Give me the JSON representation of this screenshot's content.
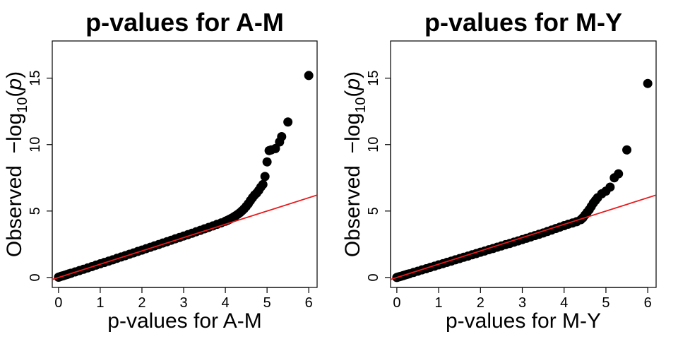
{
  "chart_data": [
    {
      "type": "scatter",
      "title": "p-values for A-M",
      "xlabel": "p-values for A-M",
      "ylabel": {
        "prefix": "Observed  −log",
        "sub": "10",
        "open": "(",
        "var": "p",
        "close": ")"
      },
      "xlim": [
        -0.15,
        6.2
      ],
      "ylim": [
        -0.75,
        17.8
      ],
      "xticks": [
        0,
        1,
        2,
        3,
        4,
        5,
        6
      ],
      "yticks": [
        0,
        5,
        10,
        15
      ],
      "reference_line": {
        "intercept": 0,
        "slope": 1,
        "color": "#e8191b"
      },
      "point_color": "#000000",
      "grid": false,
      "legend": null,
      "points": [
        [
          0.0,
          0.02
        ],
        [
          0.03,
          0.05
        ],
        [
          0.06,
          0.09
        ],
        [
          0.1,
          0.12
        ],
        [
          0.15,
          0.17
        ],
        [
          0.2,
          0.22
        ],
        [
          0.25,
          0.27
        ],
        [
          0.3,
          0.32
        ],
        [
          0.4,
          0.42
        ],
        [
          0.5,
          0.52
        ],
        [
          0.6,
          0.62
        ],
        [
          0.7,
          0.72
        ],
        [
          0.8,
          0.82
        ],
        [
          0.9,
          0.93
        ],
        [
          1.0,
          1.03
        ],
        [
          1.1,
          1.13
        ],
        [
          1.2,
          1.23
        ],
        [
          1.3,
          1.33
        ],
        [
          1.4,
          1.44
        ],
        [
          1.5,
          1.54
        ],
        [
          1.6,
          1.64
        ],
        [
          1.7,
          1.75
        ],
        [
          1.8,
          1.85
        ],
        [
          1.9,
          1.96
        ],
        [
          2.0,
          2.06
        ],
        [
          2.1,
          2.17
        ],
        [
          2.2,
          2.27
        ],
        [
          2.3,
          2.38
        ],
        [
          2.4,
          2.48
        ],
        [
          2.5,
          2.59
        ],
        [
          2.6,
          2.69
        ],
        [
          2.7,
          2.8
        ],
        [
          2.8,
          2.91
        ],
        [
          2.9,
          3.01
        ],
        [
          3.0,
          3.12
        ],
        [
          3.1,
          3.22
        ],
        [
          3.2,
          3.33
        ],
        [
          3.3,
          3.44
        ],
        [
          3.4,
          3.55
        ],
        [
          3.5,
          3.66
        ],
        [
          3.6,
          3.77
        ],
        [
          3.7,
          3.88
        ],
        [
          3.8,
          4.0
        ],
        [
          3.9,
          4.11
        ],
        [
          4.0,
          4.23
        ],
        [
          4.05,
          4.3
        ],
        [
          4.1,
          4.38
        ],
        [
          4.15,
          4.46
        ],
        [
          4.2,
          4.55
        ],
        [
          4.25,
          4.65
        ],
        [
          4.3,
          4.76
        ],
        [
          4.35,
          4.88
        ],
        [
          4.4,
          5.02
        ],
        [
          4.45,
          5.17
        ],
        [
          4.5,
          5.35
        ],
        [
          4.55,
          5.55
        ],
        [
          4.6,
          5.78
        ],
        [
          4.65,
          6.0
        ],
        [
          4.7,
          6.2
        ],
        [
          4.75,
          6.35
        ],
        [
          4.8,
          6.55
        ],
        [
          4.85,
          6.8
        ],
        [
          4.9,
          7.0
        ],
        [
          4.95,
          7.6
        ],
        [
          5.0,
          8.7
        ],
        [
          5.05,
          9.55
        ],
        [
          5.1,
          9.6
        ],
        [
          5.2,
          9.7
        ],
        [
          5.3,
          10.2
        ],
        [
          5.35,
          10.6
        ],
        [
          5.5,
          11.7
        ],
        [
          6.0,
          15.2
        ]
      ]
    },
    {
      "type": "scatter",
      "title": "p-values for M-Y",
      "xlabel": "p-values for M-Y",
      "ylabel": {
        "prefix": "Observed  −log",
        "sub": "10",
        "open": "(",
        "var": "p",
        "close": ")"
      },
      "xlim": [
        -0.15,
        6.2
      ],
      "ylim": [
        -0.75,
        17.8
      ],
      "xticks": [
        0,
        1,
        2,
        3,
        4,
        5,
        6
      ],
      "yticks": [
        0,
        5,
        10,
        15
      ],
      "reference_line": {
        "intercept": 0,
        "slope": 1,
        "color": "#e8191b"
      },
      "point_color": "#000000",
      "grid": false,
      "legend": null,
      "points": [
        [
          0.0,
          0.0
        ],
        [
          0.03,
          0.03
        ],
        [
          0.06,
          0.06
        ],
        [
          0.1,
          0.09
        ],
        [
          0.15,
          0.14
        ],
        [
          0.2,
          0.19
        ],
        [
          0.25,
          0.24
        ],
        [
          0.3,
          0.28
        ],
        [
          0.4,
          0.38
        ],
        [
          0.5,
          0.47
        ],
        [
          0.6,
          0.57
        ],
        [
          0.7,
          0.66
        ],
        [
          0.8,
          0.76
        ],
        [
          0.9,
          0.85
        ],
        [
          1.0,
          0.95
        ],
        [
          1.1,
          1.04
        ],
        [
          1.2,
          1.14
        ],
        [
          1.3,
          1.23
        ],
        [
          1.4,
          1.33
        ],
        [
          1.5,
          1.42
        ],
        [
          1.6,
          1.52
        ],
        [
          1.7,
          1.61
        ],
        [
          1.8,
          1.71
        ],
        [
          1.9,
          1.8
        ],
        [
          2.0,
          1.9
        ],
        [
          2.1,
          1.99
        ],
        [
          2.2,
          2.09
        ],
        [
          2.3,
          2.18
        ],
        [
          2.4,
          2.28
        ],
        [
          2.5,
          2.37
        ],
        [
          2.6,
          2.47
        ],
        [
          2.7,
          2.56
        ],
        [
          2.8,
          2.66
        ],
        [
          2.9,
          2.75
        ],
        [
          3.0,
          2.85
        ],
        [
          3.1,
          2.95
        ],
        [
          3.2,
          3.05
        ],
        [
          3.3,
          3.15
        ],
        [
          3.4,
          3.25
        ],
        [
          3.5,
          3.35
        ],
        [
          3.6,
          3.46
        ],
        [
          3.7,
          3.57
        ],
        [
          3.8,
          3.68
        ],
        [
          3.9,
          3.79
        ],
        [
          4.0,
          3.9
        ],
        [
          4.1,
          4.01
        ],
        [
          4.2,
          4.1
        ],
        [
          4.3,
          4.2
        ],
        [
          4.4,
          4.35
        ],
        [
          4.45,
          4.5
        ],
        [
          4.5,
          4.7
        ],
        [
          4.55,
          4.9
        ],
        [
          4.6,
          5.1
        ],
        [
          4.65,
          5.35
        ],
        [
          4.7,
          5.6
        ],
        [
          4.75,
          5.8
        ],
        [
          4.8,
          6.0
        ],
        [
          4.9,
          6.3
        ],
        [
          5.0,
          6.5
        ],
        [
          5.1,
          6.8
        ],
        [
          5.2,
          7.5
        ],
        [
          5.3,
          7.8
        ],
        [
          5.5,
          9.6
        ],
        [
          6.0,
          14.6
        ]
      ]
    }
  ]
}
